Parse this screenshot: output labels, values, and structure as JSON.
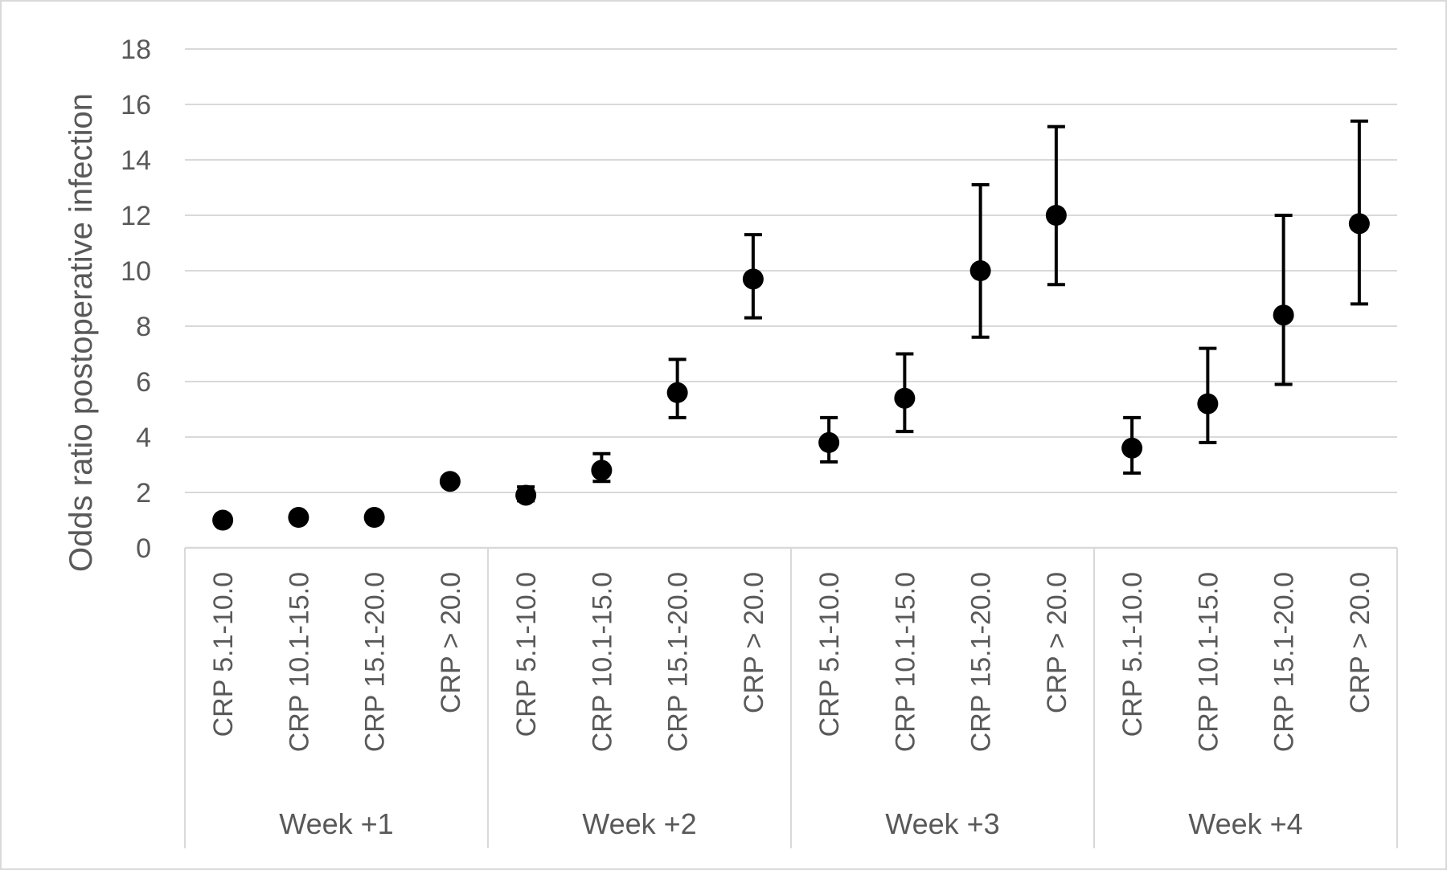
{
  "chart_data": {
    "type": "scatter",
    "title": "",
    "xlabel": "",
    "ylabel": "Odds ratio postoperative infection",
    "ylim": [
      0,
      18
    ],
    "y_ticks": [
      "0",
      "2",
      "4",
      "6",
      "8",
      "10",
      "12",
      "14",
      "16",
      "18"
    ],
    "grid": true,
    "legend": "none",
    "marker_color": "#000000",
    "groups": [
      {
        "label": "Week +1",
        "points": [
          {
            "category": "CRP 5.1-10.0",
            "value": 1.0,
            "ci_low": null,
            "ci_high": null
          },
          {
            "category": "CRP 10.1-15.0",
            "value": 1.1,
            "ci_low": null,
            "ci_high": null
          },
          {
            "category": "CRP 15.1-20.0",
            "value": 1.1,
            "ci_low": null,
            "ci_high": null
          },
          {
            "category": "CRP > 20.0",
            "value": 2.4,
            "ci_low": null,
            "ci_high": null
          }
        ]
      },
      {
        "label": "Week +2",
        "points": [
          {
            "category": "CRP 5.1-10.0",
            "value": 1.9,
            "ci_low": 1.7,
            "ci_high": 2.2
          },
          {
            "category": "CRP 10.1-15.0",
            "value": 2.8,
            "ci_low": 2.4,
            "ci_high": 3.4
          },
          {
            "category": "CRP 15.1-20.0",
            "value": 5.6,
            "ci_low": 4.7,
            "ci_high": 6.8
          },
          {
            "category": "CRP > 20.0",
            "value": 9.7,
            "ci_low": 8.3,
            "ci_high": 11.3
          }
        ]
      },
      {
        "label": "Week +3",
        "points": [
          {
            "category": "CRP 5.1-10.0",
            "value": 3.8,
            "ci_low": 3.1,
            "ci_high": 4.7
          },
          {
            "category": "CRP 10.1-15.0",
            "value": 5.4,
            "ci_low": 4.2,
            "ci_high": 7.0
          },
          {
            "category": "CRP 15.1-20.0",
            "value": 10.0,
            "ci_low": 7.6,
            "ci_high": 13.1
          },
          {
            "category": "CRP > 20.0",
            "value": 12.0,
            "ci_low": 9.5,
            "ci_high": 15.2
          }
        ]
      },
      {
        "label": "Week +4",
        "points": [
          {
            "category": "CRP 5.1-10.0",
            "value": 3.6,
            "ci_low": 2.7,
            "ci_high": 4.7
          },
          {
            "category": "CRP 10.1-15.0",
            "value": 5.2,
            "ci_low": 3.8,
            "ci_high": 7.2
          },
          {
            "category": "CRP 15.1-20.0",
            "value": 8.4,
            "ci_low": 5.9,
            "ci_high": 12.0
          },
          {
            "category": "CRP > 20.0",
            "value": 11.7,
            "ci_low": 8.8,
            "ci_high": 15.4
          }
        ]
      }
    ]
  }
}
